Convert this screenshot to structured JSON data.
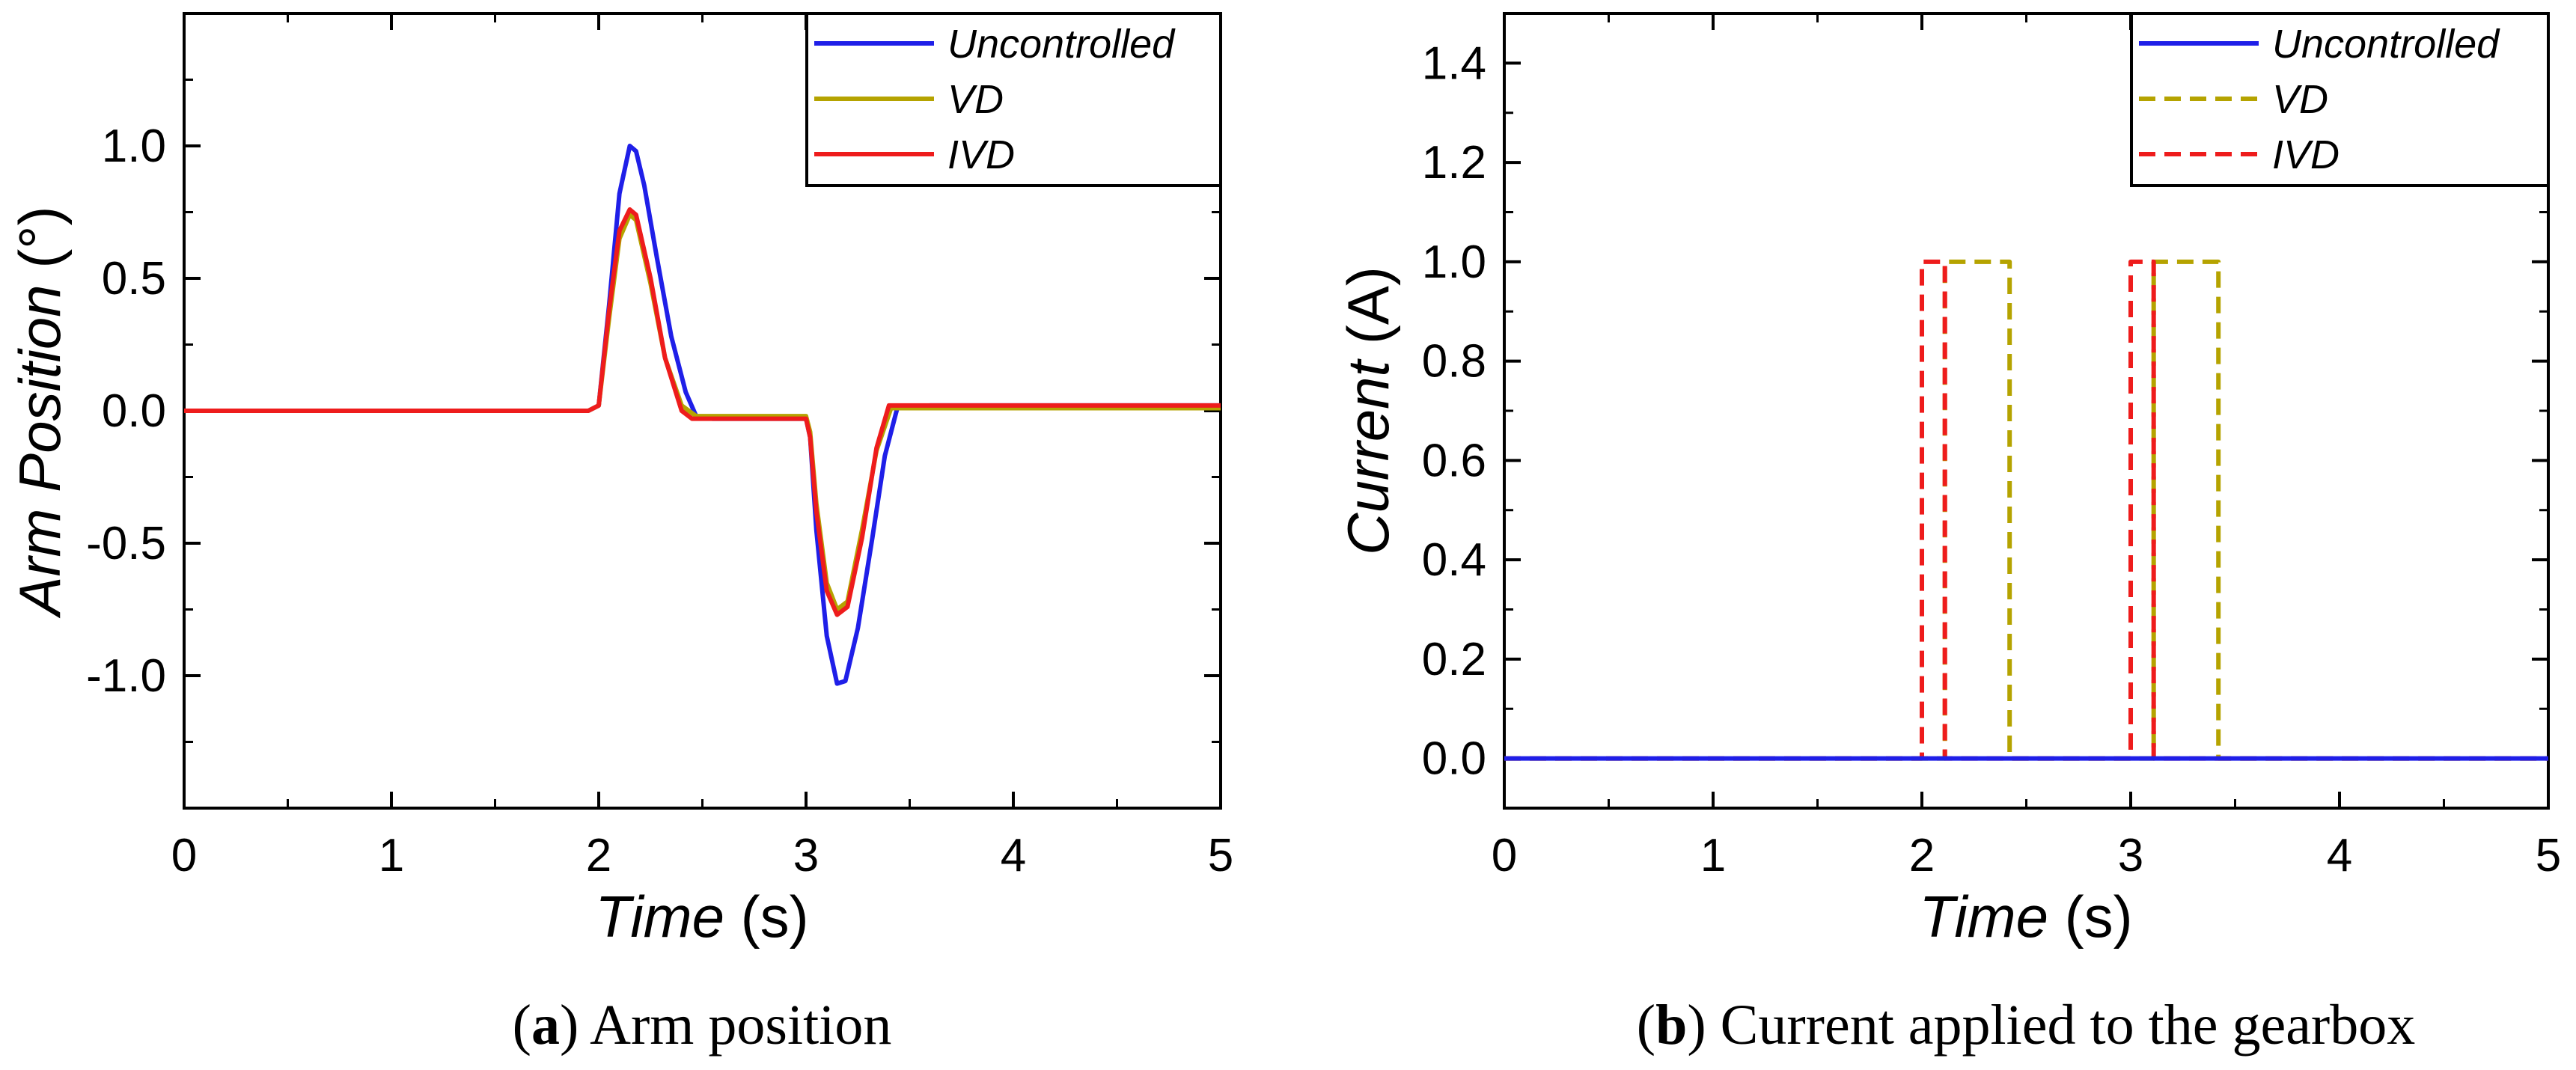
{
  "chart_data": [
    {
      "type": "line",
      "panel_id": "a",
      "caption_letter": "a",
      "caption_text": ") Arm position",
      "title": "",
      "xlabel_italic": "Time",
      "xlabel_unit": " (s)",
      "ylabel_italic": "Arm Position",
      "ylabel_unit": " (°)",
      "xlim": [
        0,
        5
      ],
      "ylim": [
        -1.5,
        1.5
      ],
      "xticks": [
        0,
        1,
        2,
        3,
        4,
        5
      ],
      "xtick_labels": [
        "0",
        "1",
        "2",
        "3",
        "4",
        "5"
      ],
      "yticks": [
        -1.0,
        -0.5,
        0.0,
        0.5,
        1.0
      ],
      "ytick_labels": [
        "-1.0",
        "-0.5",
        "0.0",
        "0.5",
        "1.0"
      ],
      "grid": false,
      "legend_position": "top-right",
      "series": [
        {
          "name": "Uncontrolled",
          "color": "#1f1fe8",
          "dash": "solid",
          "x": [
            0,
            1.95,
            2.0,
            2.05,
            2.1,
            2.15,
            2.18,
            2.22,
            2.28,
            2.35,
            2.42,
            2.47,
            2.55,
            3.0,
            3.02,
            3.05,
            3.1,
            3.15,
            3.19,
            3.25,
            3.32,
            3.38,
            3.44,
            3.6,
            5.0
          ],
          "y": [
            0,
            0,
            0.02,
            0.4,
            0.82,
            1.0,
            0.98,
            0.85,
            0.58,
            0.28,
            0.07,
            -0.02,
            -0.03,
            -0.03,
            -0.1,
            -0.45,
            -0.85,
            -1.03,
            -1.02,
            -0.82,
            -0.48,
            -0.17,
            0.01,
            0.02,
            0.02
          ]
        },
        {
          "name": "VD",
          "color": "#b5a300",
          "dash": "solid",
          "x": [
            0,
            1.95,
            2.0,
            2.05,
            2.1,
            2.15,
            2.18,
            2.25,
            2.32,
            2.4,
            2.47,
            2.55,
            3.0,
            3.02,
            3.05,
            3.1,
            3.15,
            3.2,
            3.27,
            3.34,
            3.41,
            3.6,
            5.0
          ],
          "y": [
            0,
            0,
            0.02,
            0.35,
            0.65,
            0.74,
            0.72,
            0.48,
            0.2,
            0.02,
            -0.02,
            -0.02,
            -0.02,
            -0.08,
            -0.35,
            -0.65,
            -0.75,
            -0.72,
            -0.45,
            -0.15,
            0.01,
            0.01,
            0.01
          ]
        },
        {
          "name": "IVD",
          "color": "#ee1c1c",
          "dash": "solid",
          "x": [
            0,
            1.95,
            2.0,
            2.05,
            2.1,
            2.15,
            2.18,
            2.25,
            2.32,
            2.4,
            2.45,
            2.55,
            3.0,
            3.02,
            3.05,
            3.1,
            3.15,
            3.2,
            3.27,
            3.34,
            3.4,
            3.6,
            5.0
          ],
          "y": [
            0,
            0,
            0.02,
            0.38,
            0.68,
            0.76,
            0.74,
            0.5,
            0.2,
            0.0,
            -0.03,
            -0.03,
            -0.03,
            -0.1,
            -0.38,
            -0.68,
            -0.77,
            -0.74,
            -0.48,
            -0.14,
            0.02,
            0.02,
            0.02
          ]
        }
      ]
    },
    {
      "type": "line",
      "panel_id": "b",
      "caption_letter": "b",
      "caption_text": ") Current applied to the gearbox",
      "title": "",
      "xlabel_italic": "Time",
      "xlabel_unit": " (s)",
      "ylabel_italic": "Current",
      "ylabel_unit": " (A)",
      "xlim": [
        0,
        5
      ],
      "ylim": [
        -0.1,
        1.5
      ],
      "xticks": [
        0,
        1,
        2,
        3,
        4,
        5
      ],
      "xtick_labels": [
        "0",
        "1",
        "2",
        "3",
        "4",
        "5"
      ],
      "yticks": [
        0.0,
        0.2,
        0.4,
        0.6,
        0.8,
        1.0,
        1.2,
        1.4
      ],
      "ytick_labels": [
        "0.0",
        "0.2",
        "0.4",
        "0.6",
        "0.8",
        "1.0",
        "1.2",
        "1.4"
      ],
      "grid": false,
      "legend_position": "top-right",
      "series": [
        {
          "name": "Uncontrolled",
          "color": "#1f1fe8",
          "dash": "solid",
          "x": [
            0,
            5
          ],
          "y": [
            0,
            0
          ]
        },
        {
          "name": "VD",
          "color": "#b5a300",
          "dash": "dashed",
          "x": [
            0,
            2.11,
            2.11,
            2.42,
            2.42,
            3.11,
            3.11,
            3.42,
            3.42,
            5
          ],
          "y": [
            0,
            0,
            1,
            1,
            0,
            0,
            1,
            1,
            0,
            0
          ]
        },
        {
          "name": "IVD",
          "color": "#ee1c1c",
          "dash": "dashed",
          "x": [
            0,
            2.0,
            2.0,
            2.11,
            2.11,
            3.0,
            3.0,
            3.11,
            3.11,
            5
          ],
          "y": [
            0,
            0,
            1,
            1,
            0,
            0,
            1,
            1,
            0,
            0
          ]
        }
      ]
    }
  ]
}
